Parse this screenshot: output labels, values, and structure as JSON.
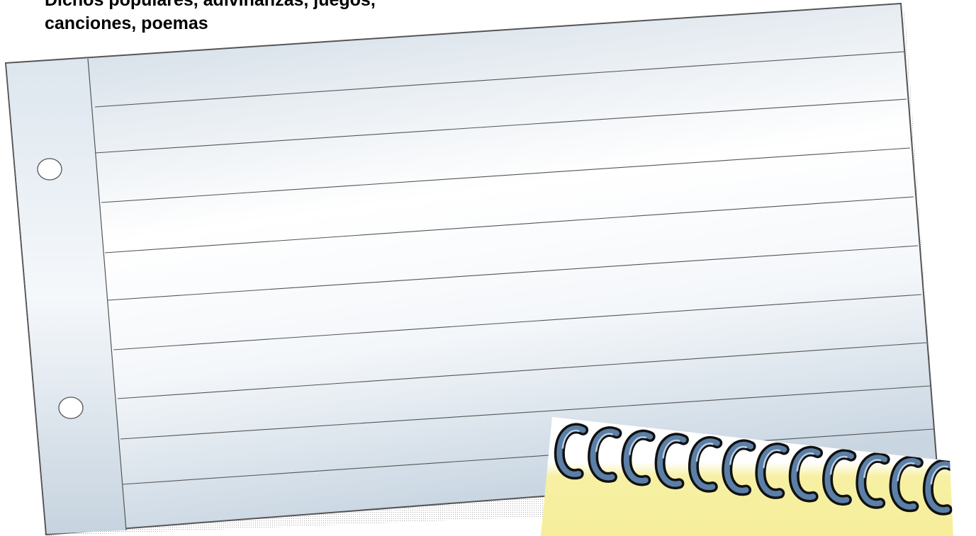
{
  "heading": {
    "line1": "Dichos populares, adivinanzas, juegos,",
    "line2": "canciones, poemas"
  },
  "paper": {
    "margin_color": "#d2dde6",
    "paper_light": "#ffffff",
    "paper_blue": "#d6e0ea",
    "line_color": "#555555"
  },
  "binder_strip": {
    "color": "#f7f0a6",
    "ring_count": 12,
    "ring_color": "#5b7fa6"
  }
}
